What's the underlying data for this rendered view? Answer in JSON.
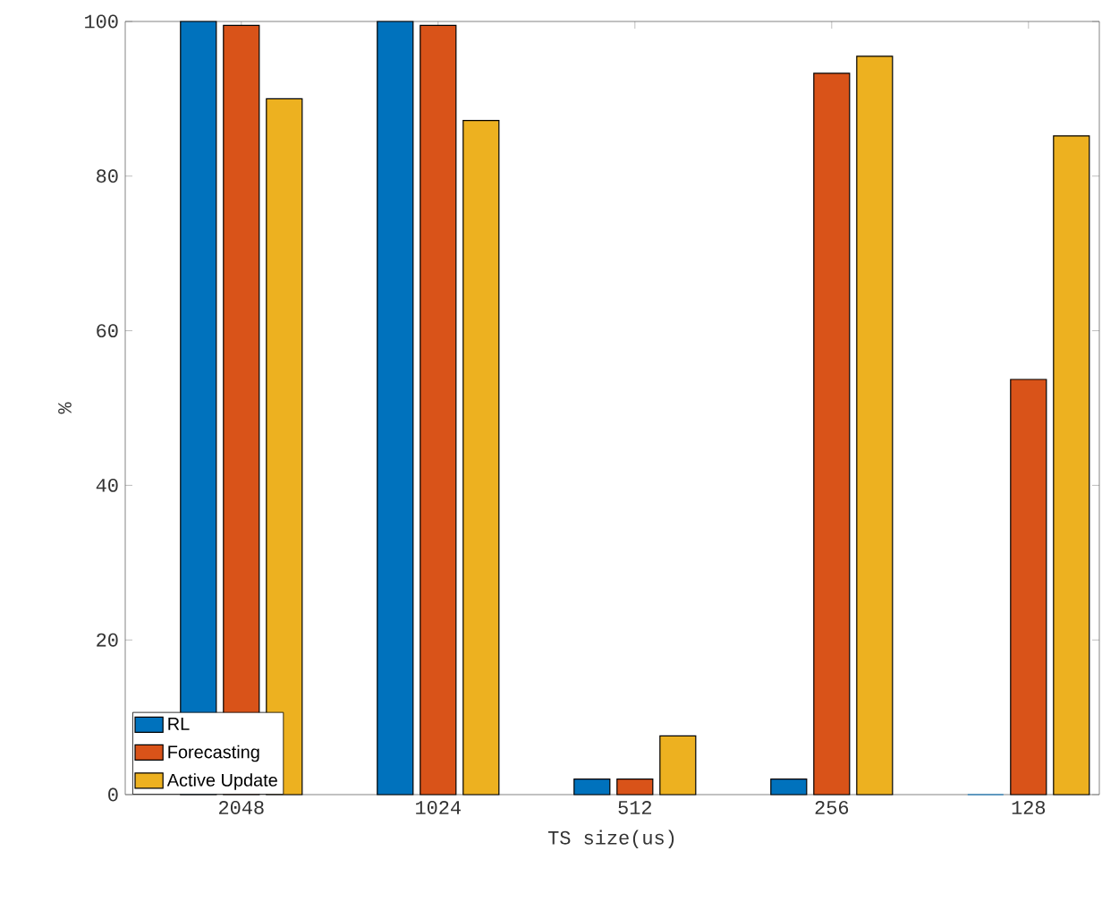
{
  "chart_data": {
    "type": "bar",
    "xlabel": "TS size(us)",
    "ylabel": "%",
    "categories": [
      "2048",
      "1024",
      "512",
      "256",
      "128"
    ],
    "series": [
      {
        "name": "RL",
        "color": "#0072bd",
        "values": [
          100,
          100,
          2,
          2,
          0
        ]
      },
      {
        "name": "Forecasting",
        "color": "#d95319",
        "values": [
          99.5,
          99.5,
          2,
          93.3,
          53.7
        ]
      },
      {
        "name": "Active Update",
        "color": "#edb120",
        "values": [
          90,
          87.2,
          7.6,
          95.5,
          85.2
        ]
      }
    ],
    "ylim": [
      0,
      100
    ],
    "yticks": [
      0,
      20,
      40,
      60,
      80,
      100
    ],
    "grid": false,
    "legend": "bottom left"
  }
}
